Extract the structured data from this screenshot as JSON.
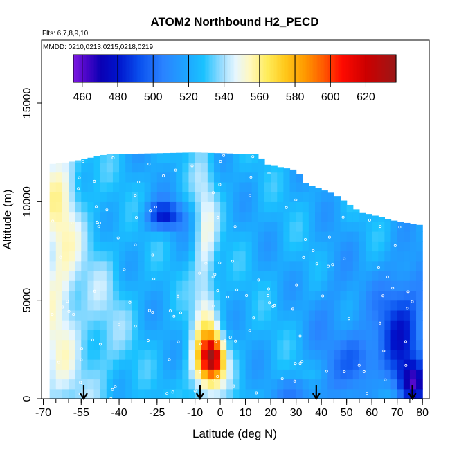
{
  "chart_data": {
    "type": "heatmap",
    "title": "ATOM2 Northbound H2_PECD",
    "flights_note": "Flts: 6,7,8,9,10",
    "dates_note": "MMDD: 0210,0213,0215,0218,0219",
    "xlabel": "Latitude (deg N)",
    "ylabel": "Altitude (m)",
    "xlim": [
      -70,
      82
    ],
    "ylim": [
      0,
      17500
    ],
    "xticks": [
      -70,
      -55,
      -40,
      -25,
      -10,
      0,
      10,
      20,
      30,
      40,
      50,
      60,
      70,
      80
    ],
    "xticks_minor_step": 5,
    "yticks": [
      0,
      5000,
      10000,
      15000
    ],
    "colorbar": {
      "range": [
        455,
        637
      ],
      "ticks": [
        460,
        480,
        500,
        520,
        540,
        560,
        580,
        600,
        620
      ],
      "colors": [
        {
          "v": 455,
          "c": "#7a18e0"
        },
        {
          "v": 462,
          "c": "#4a06c8"
        },
        {
          "v": 470,
          "c": "#0a00b4"
        },
        {
          "v": 480,
          "c": "#0014cc"
        },
        {
          "v": 492,
          "c": "#0a50ee"
        },
        {
          "v": 505,
          "c": "#2a82ff"
        },
        {
          "v": 518,
          "c": "#1ea4ff"
        },
        {
          "v": 528,
          "c": "#1ac2ff"
        },
        {
          "v": 538,
          "c": "#96dcff"
        },
        {
          "v": 546,
          "c": "#e6f6ff"
        },
        {
          "v": 554,
          "c": "#fff8c0"
        },
        {
          "v": 564,
          "c": "#ffec5a"
        },
        {
          "v": 574,
          "c": "#ffc81a"
        },
        {
          "v": 585,
          "c": "#ff9a00"
        },
        {
          "v": 596,
          "c": "#ff5800"
        },
        {
          "v": 606,
          "c": "#ff0a00"
        },
        {
          "v": 620,
          "c": "#cc0000"
        },
        {
          "v": 637,
          "c": "#9a1818"
        }
      ]
    },
    "profile_arrows_lat": [
      -54,
      -8,
      38,
      76
    ],
    "field": {
      "lat_range": [
        -67.5,
        80
      ],
      "top_boundary": [
        {
          "lat": -67.5,
          "alt": 11900
        },
        {
          "lat": -60,
          "alt": 12000
        },
        {
          "lat": -45,
          "alt": 12400
        },
        {
          "lat": -10,
          "alt": 12500
        },
        {
          "lat": 15,
          "alt": 12400
        },
        {
          "lat": 18,
          "alt": 11900
        },
        {
          "lat": 30,
          "alt": 11600
        },
        {
          "lat": 34,
          "alt": 10900
        },
        {
          "lat": 45,
          "alt": 10400
        },
        {
          "lat": 55,
          "alt": 9500
        },
        {
          "lat": 70,
          "alt": 9000
        },
        {
          "lat": 80,
          "alt": 8800
        }
      ],
      "background_value": 522,
      "features": [
        {
          "lat": -63,
          "alt": 7500,
          "slat": 5,
          "salt": 5000,
          "amp": 20
        },
        {
          "lat": -6,
          "alt": 6500,
          "slat": 3.5,
          "salt": 4800,
          "amp": 26
        },
        {
          "lat": -5,
          "alt": 1800,
          "slat": 6,
          "salt": 1400,
          "amp": 28
        },
        {
          "lat": -3,
          "alt": 2100,
          "slat": 3,
          "salt": 700,
          "amp": 75
        },
        {
          "lat": 72,
          "alt": 3500,
          "slat": 7,
          "salt": 2200,
          "amp": -38
        },
        {
          "lat": 76,
          "alt": 800,
          "slat": 4,
          "salt": 700,
          "amp": -40
        },
        {
          "lat": 32,
          "alt": 400,
          "slat": 6,
          "salt": 400,
          "amp": -20
        },
        {
          "lat": -22,
          "alt": 9300,
          "slat": 5,
          "salt": 500,
          "amp": -40
        },
        {
          "lat": 55,
          "alt": 2000,
          "slat": 5,
          "salt": 1000,
          "amp": -25
        },
        {
          "lat": 45,
          "alt": 4000,
          "slat": 6,
          "salt": 2500,
          "amp": -12
        },
        {
          "lat": -45,
          "alt": 3500,
          "slat": 8,
          "salt": 3000,
          "amp": 12
        }
      ]
    }
  }
}
